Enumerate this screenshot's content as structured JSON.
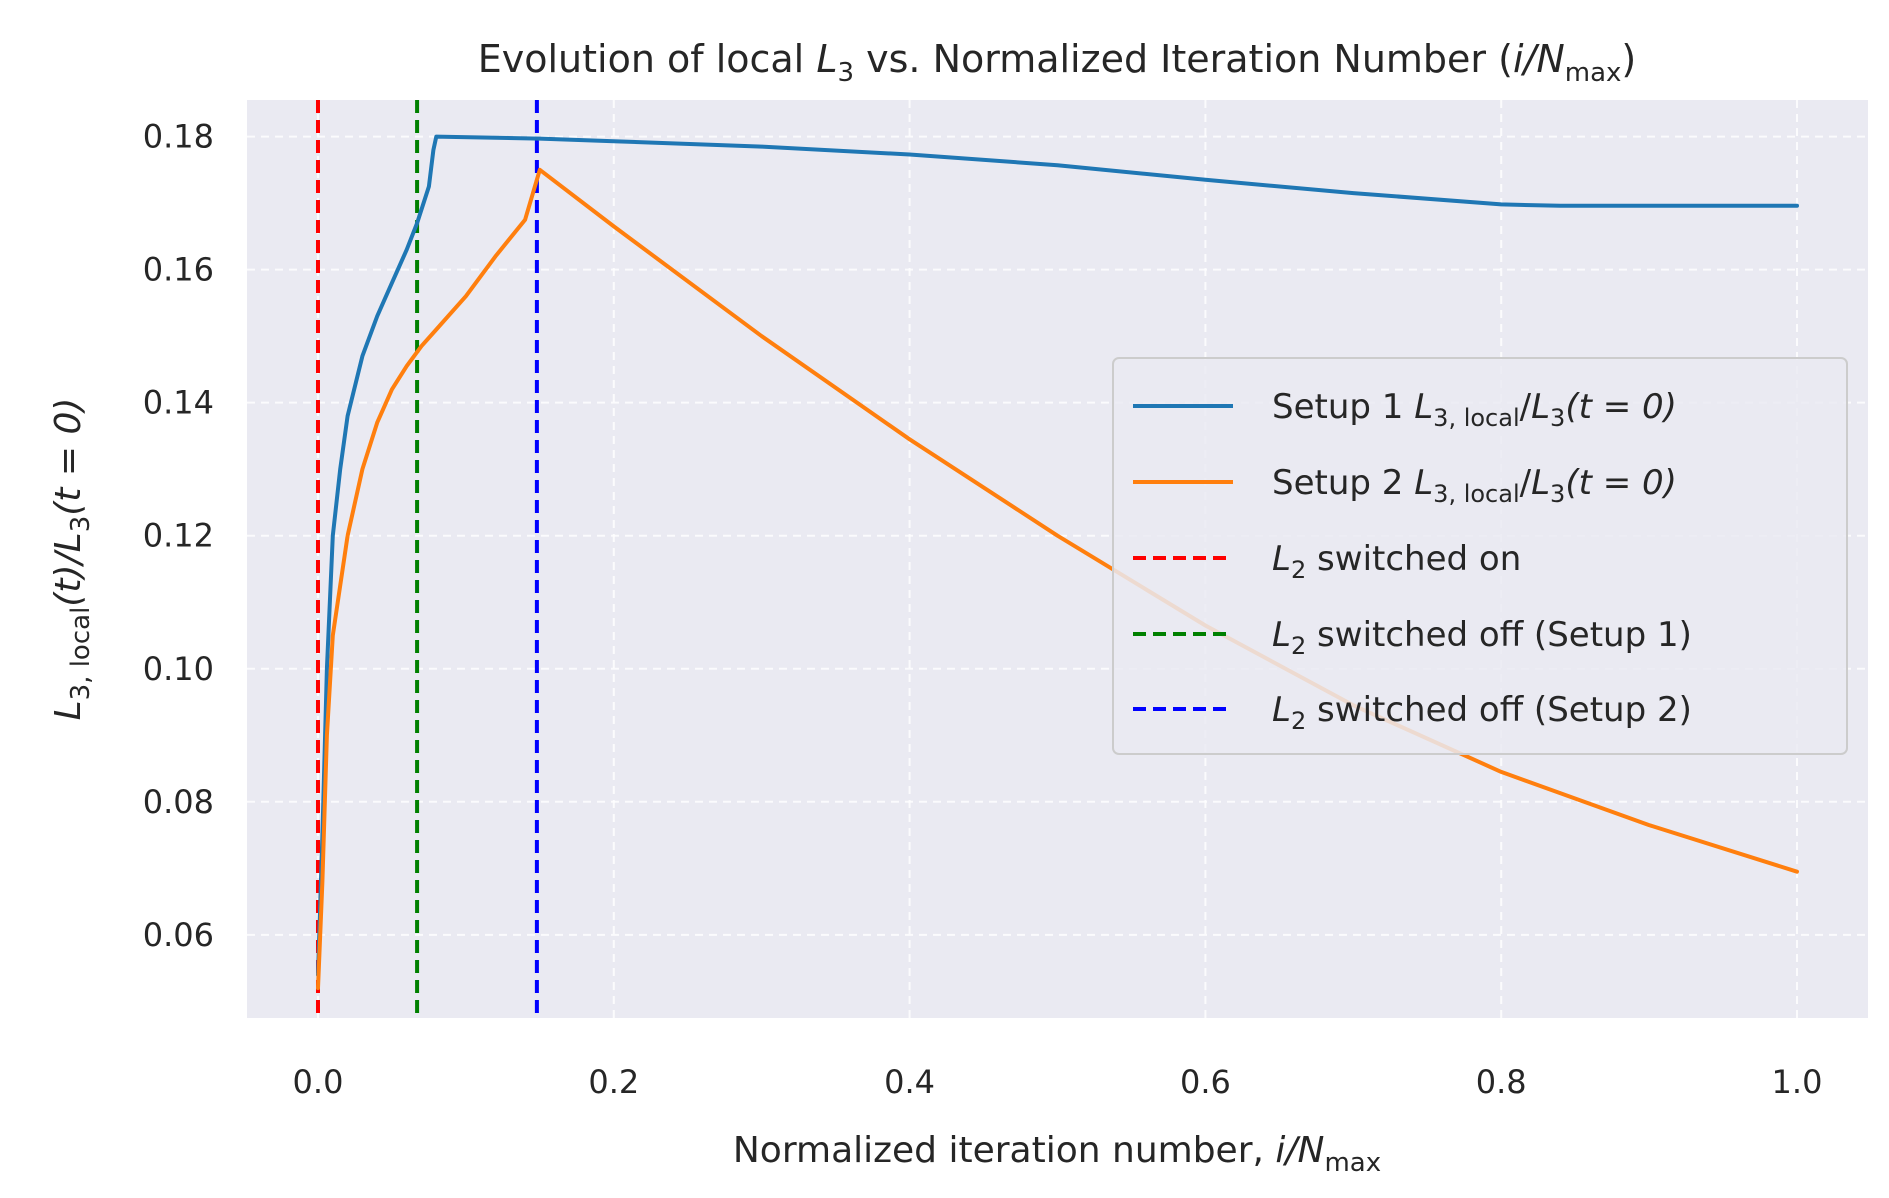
{
  "chart_data": {
    "type": "line",
    "title": {
      "prefix": "Evolution of local ",
      "math": "L",
      "sub": "3",
      "middle": " vs. Normalized Iteration Number (",
      "math2": "i/N",
      "sub2": "max",
      "suffix": ")"
    },
    "xlabel": {
      "prefix": "Normalized iteration number, ",
      "math": "i/N",
      "sub": "max"
    },
    "ylabel": {
      "l": "L",
      "sub": "3, local",
      "mid": "(t)/",
      "l2": "L",
      "sub2": "3",
      "end": "(t = 0)"
    },
    "xlim": [
      -0.048,
      1.048
    ],
    "ylim": [
      0.0475,
      0.1855
    ],
    "x_ticks": [
      0.0,
      0.2,
      0.4,
      0.6,
      0.8,
      1.0
    ],
    "x_tick_labels": [
      "0.0",
      "0.2",
      "0.4",
      "0.6",
      "0.8",
      "1.0"
    ],
    "y_ticks": [
      0.06,
      0.08,
      0.1,
      0.12,
      0.14,
      0.16,
      0.18
    ],
    "y_tick_labels": [
      "0.06",
      "0.08",
      "0.10",
      "0.12",
      "0.14",
      "0.16",
      "0.18"
    ],
    "grid": true,
    "legend_position": "center-right",
    "series": [
      {
        "label_pre": "Setup 1 ",
        "label_l": "L",
        "label_sub": "3, local",
        "label_mid": "/",
        "label_l2": "L",
        "label_sub2": "3",
        "label_end": "(t = 0)",
        "color": "#1f77b4",
        "points": [
          [
            0.0,
            0.054
          ],
          [
            0.003,
            0.075
          ],
          [
            0.006,
            0.1
          ],
          [
            0.01,
            0.12
          ],
          [
            0.015,
            0.13
          ],
          [
            0.02,
            0.138
          ],
          [
            0.03,
            0.147
          ],
          [
            0.04,
            0.153
          ],
          [
            0.05,
            0.158
          ],
          [
            0.06,
            0.163
          ],
          [
            0.067,
            0.167
          ],
          [
            0.075,
            0.1725
          ],
          [
            0.078,
            0.178
          ],
          [
            0.08,
            0.18
          ],
          [
            0.15,
            0.1797
          ],
          [
            0.2,
            0.1793
          ],
          [
            0.3,
            0.1785
          ],
          [
            0.4,
            0.1773
          ],
          [
            0.5,
            0.1757
          ],
          [
            0.6,
            0.1735
          ],
          [
            0.7,
            0.1715
          ],
          [
            0.8,
            0.1698
          ],
          [
            0.84,
            0.1696
          ],
          [
            1.0,
            0.1696
          ]
        ]
      },
      {
        "label_pre": "Setup 2 ",
        "label_l": "L",
        "label_sub": "3, local",
        "label_mid": "/",
        "label_l2": "L",
        "label_sub2": "3",
        "label_end": "(t = 0)",
        "color": "#ff7f0e",
        "points": [
          [
            0.0,
            0.052
          ],
          [
            0.003,
            0.068
          ],
          [
            0.006,
            0.09
          ],
          [
            0.01,
            0.105
          ],
          [
            0.02,
            0.12
          ],
          [
            0.03,
            0.13
          ],
          [
            0.04,
            0.137
          ],
          [
            0.05,
            0.142
          ],
          [
            0.06,
            0.1455
          ],
          [
            0.07,
            0.1485
          ],
          [
            0.08,
            0.151
          ],
          [
            0.1,
            0.156
          ],
          [
            0.12,
            0.162
          ],
          [
            0.14,
            0.1675
          ],
          [
            0.15,
            0.175
          ],
          [
            0.2,
            0.1665
          ],
          [
            0.3,
            0.15
          ],
          [
            0.4,
            0.1345
          ],
          [
            0.5,
            0.12
          ],
          [
            0.6,
            0.1065
          ],
          [
            0.7,
            0.0945
          ],
          [
            0.8,
            0.0845
          ],
          [
            0.9,
            0.0765
          ],
          [
            1.0,
            0.0695
          ]
        ]
      }
    ],
    "vlines": [
      {
        "x": 0.0,
        "color": "#ff0000",
        "label_l": "L",
        "label_sub": "2",
        "label_rest": " switched on"
      },
      {
        "x": 0.067,
        "color": "#008000",
        "label_l": "L",
        "label_sub": "2",
        "label_rest": " switched off (Setup 1)"
      },
      {
        "x": 0.148,
        "color": "#0000ff",
        "label_l": "L",
        "label_sub": "2",
        "label_rest": " switched off (Setup 2)"
      }
    ]
  }
}
